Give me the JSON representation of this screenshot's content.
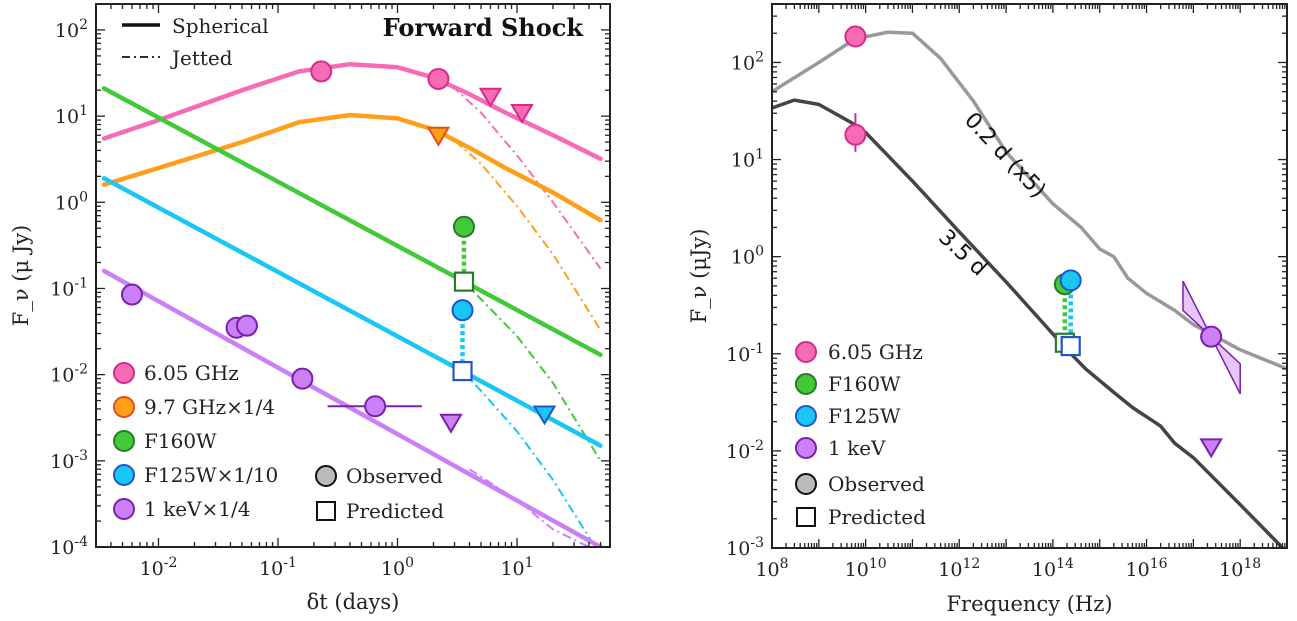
{
  "chart_data": [
    {
      "type": "line",
      "title": "Forward Shock",
      "xlabel": "δt (days)",
      "ylabel": "F_ν (μ Jy)",
      "xscale": "log",
      "yscale": "log",
      "xlim": [
        0.003,
        60
      ],
      "ylim": [
        0.0001,
        200
      ],
      "grid": false,
      "xticks": [
        {
          "value": 0.01,
          "base": "10",
          "exp": "-2"
        },
        {
          "value": 0.1,
          "base": "10",
          "exp": "-1"
        },
        {
          "value": 1,
          "base": "10",
          "exp": "0"
        },
        {
          "value": 10,
          "base": "10",
          "exp": "1"
        }
      ],
      "yticks": [
        {
          "value": 0.0001,
          "base": "10",
          "exp": "-4"
        },
        {
          "value": 0.001,
          "base": "10",
          "exp": "-3"
        },
        {
          "value": 0.01,
          "base": "10",
          "exp": "-2"
        },
        {
          "value": 0.1,
          "base": "10",
          "exp": "-1"
        },
        {
          "value": 1,
          "base": "10",
          "exp": "0"
        },
        {
          "value": 10,
          "base": "10",
          "exp": "1"
        },
        {
          "value": 100,
          "base": "10",
          "exp": "2"
        }
      ],
      "style_legend": [
        {
          "label": "Spherical",
          "style": "solid"
        },
        {
          "label": "Jetted",
          "style": "dashdot"
        }
      ],
      "legend": [
        {
          "label": "6.05 GHz",
          "color": "#f76bb5"
        },
        {
          "label": "9.7 GHz×1/4",
          "color": "#ff9e19"
        },
        {
          "label": "F160W",
          "color": "#41c937"
        },
        {
          "label": "F125W×1/10",
          "color": "#19c6f5"
        },
        {
          "label": "1 keV×1/4",
          "color": "#cb80f5"
        }
      ],
      "marker_legend": [
        {
          "label": "Observed",
          "marker": "circle"
        },
        {
          "label": "Predicted",
          "marker": "square"
        }
      ],
      "series": [
        {
          "color": "#f76bb5",
          "edge": "#d52a8e",
          "spherical": [
            [
              0.0035,
              5.5
            ],
            [
              0.01,
              9
            ],
            [
              0.05,
              20
            ],
            [
              0.15,
              33
            ],
            [
              0.4,
              40
            ],
            [
              1,
              37
            ],
            [
              2,
              28
            ],
            [
              4,
              18
            ],
            [
              8,
              11
            ],
            [
              20,
              6
            ],
            [
              50,
              3.2
            ]
          ],
          "jetted": [
            [
              2,
              26
            ],
            [
              3,
              21
            ],
            [
              5,
              11
            ],
            [
              10,
              3.5
            ],
            [
              20,
              1
            ],
            [
              50,
              0.17
            ]
          ],
          "observed": [
            [
              0.23,
              33
            ],
            [
              2.2,
              27
            ]
          ],
          "upper_limits": [
            [
              6,
              17
            ],
            [
              11,
              11
            ]
          ]
        },
        {
          "color": "#ff9e19",
          "edge": "#e0501a",
          "spherical": [
            [
              0.0035,
              1.6
            ],
            [
              0.01,
              2.5
            ],
            [
              0.05,
              5
            ],
            [
              0.15,
              8.5
            ],
            [
              0.4,
              10.3
            ],
            [
              1,
              9.4
            ],
            [
              2,
              7
            ],
            [
              4,
              4.3
            ],
            [
              8,
              2.5
            ],
            [
              20,
              1.3
            ],
            [
              50,
              0.62
            ]
          ],
          "jetted": [
            [
              2.2,
              6.5
            ],
            [
              3,
              5.2
            ],
            [
              5,
              2.8
            ],
            [
              10,
              0.9
            ],
            [
              20,
              0.25
            ],
            [
              50,
              0.033
            ]
          ],
          "observed": [],
          "upper_limits": [
            [
              2.2,
              6
            ]
          ]
        },
        {
          "color": "#41c937",
          "edge": "#2a7a2a",
          "spherical": [
            [
              0.0035,
              21
            ],
            [
              50,
              0.017
            ]
          ],
          "jetted": [
            [
              3.6,
              0.12
            ],
            [
              5,
              0.075
            ],
            [
              10,
              0.028
            ],
            [
              20,
              0.008
            ],
            [
              50,
              0.001
            ]
          ],
          "observed": [
            [
              3.6,
              0.52
            ]
          ],
          "predicted": [
            [
              3.6,
              0.12
            ]
          ],
          "upper_limits": []
        },
        {
          "color": "#19c6f5",
          "edge": "#2255cc",
          "spherical": [
            [
              0.0035,
              1.9
            ],
            [
              50,
              0.0015
            ]
          ],
          "jetted": [
            [
              3.5,
              0.011
            ],
            [
              5,
              0.0065
            ],
            [
              10,
              0.0022
            ],
            [
              20,
              0.0006
            ],
            [
              45,
              0.0001
            ]
          ],
          "observed": [
            [
              3.5,
              0.056
            ]
          ],
          "predicted": [
            [
              3.5,
              0.011
            ]
          ],
          "upper_limits": [
            [
              17,
              0.0035
            ]
          ]
        },
        {
          "color": "#cb80f5",
          "edge": "#7a1fb0",
          "spherical": [
            [
              0.0035,
              0.16
            ],
            [
              50,
              0.0001
            ]
          ],
          "jetted": [
            [
              4,
              0.0008
            ],
            [
              10,
              0.00035
            ],
            [
              20,
              0.00016
            ],
            [
              40,
              0.0001
            ]
          ],
          "observed": [
            [
              0.006,
              0.085
            ],
            [
              0.045,
              0.035
            ],
            [
              0.055,
              0.037
            ],
            [
              0.16,
              0.009
            ],
            [
              0.65,
              0.0043
            ]
          ],
          "xerr_point": {
            "x": 0.65,
            "y": 0.0043,
            "xlo": 0.26,
            "xhi": 1.6
          },
          "upper_limits": [
            [
              2.8,
              0.0028
            ]
          ]
        }
      ]
    },
    {
      "type": "line",
      "xlabel": "Frequency (Hz)",
      "ylabel": "F_ν (μJy)",
      "xscale": "log",
      "yscale": "log",
      "xlim": [
        100000000,
        1e+19
      ],
      "ylim": [
        0.001,
        400
      ],
      "grid": false,
      "xticks": [
        {
          "value": 100000000,
          "base": "10",
          "exp": "8"
        },
        {
          "value": 10000000000,
          "base": "10",
          "exp": "10"
        },
        {
          "value": 1000000000000,
          "base": "10",
          "exp": "12"
        },
        {
          "value": 100000000000000,
          "base": "10",
          "exp": "14"
        },
        {
          "value": 1e+16,
          "base": "10",
          "exp": "16"
        },
        {
          "value": 1e+18,
          "base": "10",
          "exp": "18"
        }
      ],
      "yticks": [
        {
          "value": 0.001,
          "base": "10",
          "exp": "-3"
        },
        {
          "value": 0.01,
          "base": "10",
          "exp": "-2"
        },
        {
          "value": 0.1,
          "base": "10",
          "exp": "-1"
        },
        {
          "value": 1,
          "base": "10",
          "exp": "0"
        },
        {
          "value": 10,
          "base": "10",
          "exp": "1"
        },
        {
          "value": 100,
          "base": "10",
          "exp": "2"
        }
      ],
      "legend": [
        {
          "label": "6.05 GHz",
          "color": "#f76bb5"
        },
        {
          "label": "F160W",
          "color": "#41c937"
        },
        {
          "label": "F125W",
          "color": "#19c6f5"
        },
        {
          "label": "1 keV",
          "color": "#cb80f5"
        }
      ],
      "marker_legend": [
        {
          "label": "Observed",
          "marker": "circle"
        },
        {
          "label": "Predicted",
          "marker": "square"
        }
      ],
      "curves": [
        {
          "label": "0.2 d (x5)",
          "color": "#999999",
          "points": [
            [
              100000000,
              50
            ],
            [
              1000000000,
              100
            ],
            [
              6000000000,
              175
            ],
            [
              30000000000,
              205
            ],
            [
              100000000000,
              200
            ],
            [
              400000000000,
              110
            ],
            [
              2000000000000,
              40
            ],
            [
              10000000000000,
              12
            ],
            [
              100000000000000,
              3.5
            ],
            [
              400000000000000,
              2
            ],
            [
              1000000000000000,
              1.2
            ],
            [
              2000000000000000,
              1
            ],
            [
              4000000000000000,
              0.6
            ],
            [
              10000000000000000,
              0.42
            ],
            [
              40000000000000000,
              0.28
            ],
            [
              1e+17,
              0.2
            ],
            [
              1e+18,
              0.11
            ],
            [
              1e+19,
              0.07
            ]
          ]
        },
        {
          "label": "3.5 d",
          "color": "#444444",
          "points": [
            [
              100000000,
              34
            ],
            [
              300000000,
              41
            ],
            [
              1000000000,
              37
            ],
            [
              5000000000,
              24
            ],
            [
              10000000000,
              19
            ],
            [
              100000000000,
              6
            ],
            [
              1000000000000,
              1.8
            ],
            [
              10000000000000,
              0.55
            ],
            [
              100000000000000,
              0.16
            ],
            [
              200000000000000,
              0.11
            ],
            [
              500000000000000,
              0.07
            ],
            [
              2000000000000000,
              0.04
            ],
            [
              5000000000000000,
              0.028
            ],
            [
              20000000000000000,
              0.018
            ],
            [
              40000000000000000,
              0.012
            ],
            [
              1e+17,
              0.0085
            ],
            [
              1e+18,
              0.0028
            ],
            [
              1e+19,
              0.0009
            ]
          ]
        }
      ],
      "points": [
        {
          "x": 6050000000,
          "y": 185,
          "color": "#f76bb5",
          "edge": "#d52a8e",
          "kind": "observed"
        },
        {
          "x": 6050000000,
          "y": 18,
          "color": "#f76bb5",
          "edge": "#d52a8e",
          "kind": "observed",
          "yerr": [
            12,
            30
          ]
        },
        {
          "x": 180000000000000,
          "y": 0.52,
          "color": "#41c937",
          "edge": "#2a7a2a",
          "kind": "observed"
        },
        {
          "x": 180000000000000,
          "y": 0.13,
          "color": "#41c937",
          "edge": "#2a7a2a",
          "kind": "predicted"
        },
        {
          "x": 240000000000000,
          "y": 0.57,
          "color": "#19c6f5",
          "edge": "#2255cc",
          "kind": "observed"
        },
        {
          "x": 240000000000000,
          "y": 0.12,
          "color": "#19c6f5",
          "edge": "#2255cc",
          "kind": "predicted"
        },
        {
          "x": 2.4e+17,
          "y": 0.15,
          "color": "#cb80f5",
          "edge": "#7a1fb0",
          "kind": "observed",
          "xerr": [
            1.4e+17,
            3.8e+17
          ]
        },
        {
          "x": 2.4e+17,
          "y": 0.011,
          "color": "#cb80f5",
          "edge": "#7a1fb0",
          "kind": "upper_limit"
        }
      ],
      "xray_bowtie": {
        "x0": 2.4e+17,
        "y0": 0.15,
        "x1": 6e+16,
        "x2": 1e+18,
        "slope_lo": -0.45,
        "slope_hi": -0.95
      }
    }
  ]
}
